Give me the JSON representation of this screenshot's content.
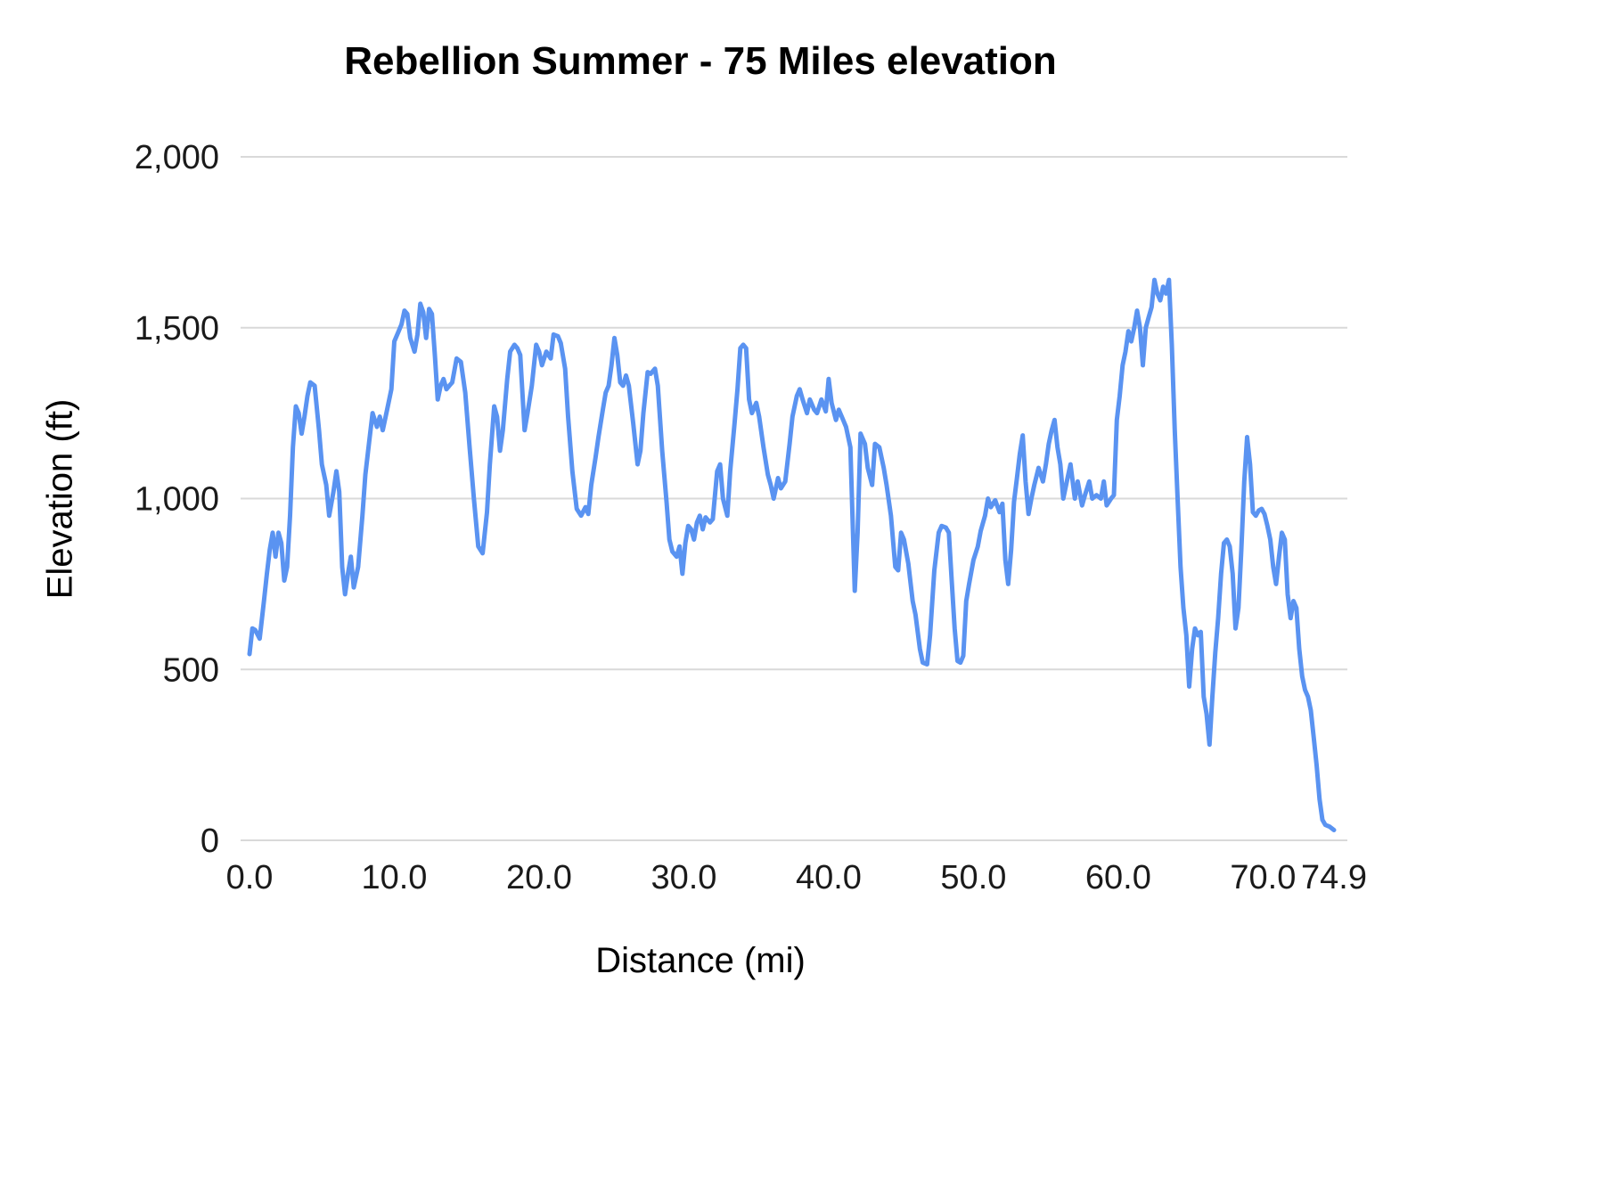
{
  "chart_data": {
    "type": "line",
    "title": "Rebellion Summer - 75 Miles elevation",
    "xlabel": "Distance (mi)",
    "ylabel": "Elevation (ft)",
    "xlim": [
      0,
      74.9
    ],
    "ylim": [
      0,
      2000
    ],
    "grid": "horizontal",
    "legend": "none",
    "line_color": "#5a93f1",
    "grid_color": "#d9d9d9",
    "x_ticks": [
      {
        "value": 0,
        "label": "0.0"
      },
      {
        "value": 10,
        "label": "10.0"
      },
      {
        "value": 20,
        "label": "20.0"
      },
      {
        "value": 30,
        "label": "30.0"
      },
      {
        "value": 40,
        "label": "40.0"
      },
      {
        "value": 50,
        "label": "50.0"
      },
      {
        "value": 60,
        "label": "60.0"
      },
      {
        "value": 70,
        "label": "70.0"
      },
      {
        "value": 74.9,
        "label": "74.9"
      }
    ],
    "y_ticks": [
      {
        "value": 0,
        "label": "0"
      },
      {
        "value": 500,
        "label": "500"
      },
      {
        "value": 1000,
        "label": "1,000"
      },
      {
        "value": 1500,
        "label": "1,500"
      },
      {
        "value": 2000,
        "label": "2,000"
      }
    ],
    "series": [
      {
        "x": [
          0,
          0.2,
          0.4,
          0.7,
          1,
          1.2,
          1.4,
          1.6,
          1.8,
          2,
          2.2,
          2.4,
          2.6,
          2.8,
          3,
          3.2,
          3.4,
          3.6,
          3.8,
          4,
          4.2,
          4.5,
          4.8,
          5,
          5.3,
          5.5,
          5.8,
          6,
          6.2,
          6.4,
          6.6,
          6.8,
          7,
          7.2,
          7.5,
          7.8,
          8,
          8.3,
          8.5,
          8.8,
          9,
          9.2,
          9.5,
          9.8,
          10,
          10.3,
          10.5,
          10.7,
          10.9,
          11.1,
          11.4,
          11.6,
          11.8,
          12,
          12.2,
          12.4,
          12.6,
          12.8,
          13,
          13.2,
          13.4,
          13.6,
          13.8,
          14,
          14.3,
          14.6,
          14.9,
          15.2,
          15.5,
          15.8,
          16.1,
          16.4,
          16.6,
          16.9,
          17.1,
          17.3,
          17.5,
          17.8,
          18,
          18.3,
          18.5,
          18.7,
          19,
          19.2,
          19.5,
          19.8,
          20,
          20.2,
          20.5,
          20.8,
          21,
          21.3,
          21.5,
          21.8,
          22,
          22.3,
          22.6,
          22.9,
          23.2,
          23.4,
          23.6,
          23.9,
          24.1,
          24.4,
          24.6,
          24.8,
          25,
          25.2,
          25.4,
          25.6,
          25.8,
          26,
          26.2,
          26.5,
          26.8,
          27,
          27.2,
          27.5,
          27.7,
          28,
          28.2,
          28.5,
          28.8,
          29,
          29.2,
          29.5,
          29.7,
          29.9,
          30.1,
          30.3,
          30.5,
          30.7,
          30.9,
          31.1,
          31.3,
          31.5,
          31.8,
          32,
          32.3,
          32.5,
          32.7,
          33,
          33.2,
          33.5,
          33.7,
          33.9,
          34.1,
          34.3,
          34.5,
          34.7,
          35,
          35.2,
          35.5,
          35.8,
          36,
          36.2,
          36.5,
          36.7,
          37,
          37.3,
          37.5,
          37.8,
          38,
          38.2,
          38.5,
          38.7,
          39,
          39.2,
          39.5,
          39.8,
          40,
          40.2,
          40.5,
          40.7,
          41,
          41.2,
          41.5,
          41.8,
          42,
          42.2,
          42.5,
          42.7,
          43,
          43.2,
          43.5,
          43.8,
          44,
          44.3,
          44.6,
          44.8,
          45,
          45.2,
          45.5,
          45.8,
          46,
          46.3,
          46.5,
          46.8,
          47,
          47.3,
          47.6,
          47.8,
          48.1,
          48.3,
          48.5,
          48.7,
          48.9,
          49.1,
          49.3,
          49.5,
          49.7,
          50,
          50.3,
          50.5,
          50.8,
          51,
          51.2,
          51.5,
          51.8,
          52,
          52.2,
          52.4,
          52.6,
          52.8,
          53,
          53.2,
          53.4,
          53.6,
          53.8,
          54,
          54.2,
          54.5,
          54.8,
          55,
          55.2,
          55.4,
          55.6,
          55.8,
          56,
          56.2,
          56.5,
          56.7,
          57,
          57.2,
          57.5,
          57.7,
          58,
          58.2,
          58.5,
          58.8,
          59,
          59.2,
          59.5,
          59.7,
          59.9,
          60.1,
          60.3,
          60.5,
          60.7,
          60.9,
          61.1,
          61.3,
          61.5,
          61.7,
          61.9,
          62.1,
          62.3,
          62.5,
          62.7,
          62.9,
          63.1,
          63.3,
          63.5,
          63.7,
          63.9,
          64.1,
          64.3,
          64.5,
          64.7,
          64.9,
          65.1,
          65.3,
          65.5,
          65.7,
          65.9,
          66.1,
          66.3,
          66.5,
          66.7,
          66.9,
          67.1,
          67.3,
          67.5,
          67.7,
          67.9,
          68.1,
          68.3,
          68.5,
          68.7,
          68.9,
          69.1,
          69.3,
          69.5,
          69.7,
          69.9,
          70.1,
          70.3,
          70.5,
          70.7,
          70.9,
          71.1,
          71.3,
          71.5,
          71.7,
          71.9,
          72.1,
          72.3,
          72.5,
          72.7,
          72.9,
          73.1,
          73.3,
          73.5,
          73.7,
          73.9,
          74.1,
          74.3,
          74.6,
          74.9
        ],
        "values": [
          545,
          620,
          615,
          590,
          700,
          780,
          850,
          900,
          830,
          900,
          870,
          760,
          800,
          950,
          1150,
          1270,
          1250,
          1190,
          1240,
          1300,
          1340,
          1330,
          1200,
          1100,
          1040,
          950,
          1020,
          1080,
          1020,
          800,
          720,
          780,
          830,
          740,
          800,
          950,
          1070,
          1180,
          1250,
          1210,
          1240,
          1200,
          1260,
          1320,
          1460,
          1490,
          1510,
          1550,
          1540,
          1470,
          1430,
          1480,
          1570,
          1545,
          1470,
          1555,
          1540,
          1420,
          1290,
          1330,
          1350,
          1320,
          1330,
          1340,
          1410,
          1400,
          1310,
          1150,
          1000,
          860,
          840,
          960,
          1100,
          1270,
          1240,
          1140,
          1200,
          1350,
          1430,
          1450,
          1440,
          1420,
          1200,
          1250,
          1330,
          1450,
          1430,
          1390,
          1430,
          1410,
          1480,
          1475,
          1455,
          1380,
          1240,
          1080,
          970,
          950,
          975,
          955,
          1040,
          1120,
          1180,
          1260,
          1310,
          1330,
          1390,
          1470,
          1420,
          1340,
          1330,
          1360,
          1330,
          1220,
          1100,
          1140,
          1250,
          1370,
          1365,
          1380,
          1330,
          1140,
          990,
          880,
          845,
          830,
          860,
          780,
          870,
          920,
          910,
          880,
          930,
          950,
          910,
          945,
          930,
          940,
          1080,
          1100,
          1000,
          950,
          1080,
          1220,
          1320,
          1440,
          1450,
          1440,
          1290,
          1250,
          1280,
          1240,
          1150,
          1070,
          1040,
          1000,
          1060,
          1030,
          1050,
          1160,
          1240,
          1300,
          1320,
          1290,
          1250,
          1290,
          1260,
          1250,
          1290,
          1255,
          1350,
          1280,
          1230,
          1260,
          1230,
          1210,
          1150,
          730,
          900,
          1190,
          1160,
          1090,
          1040,
          1160,
          1150,
          1090,
          1040,
          950,
          800,
          790,
          900,
          880,
          810,
          700,
          660,
          560,
          520,
          515,
          600,
          790,
          900,
          920,
          915,
          900,
          760,
          620,
          525,
          520,
          540,
          700,
          750,
          820,
          860,
          905,
          950,
          1000,
          975,
          995,
          960,
          985,
          820,
          750,
          850,
          990,
          1060,
          1130,
          1185,
          1050,
          955,
          1000,
          1040,
          1090,
          1050,
          1100,
          1160,
          1200,
          1230,
          1150,
          1100,
          1000,
          1060,
          1100,
          1000,
          1050,
          980,
          1010,
          1050,
          1000,
          1010,
          1000,
          1050,
          980,
          1000,
          1010,
          1230,
          1300,
          1390,
          1430,
          1490,
          1460,
          1500,
          1550,
          1500,
          1390,
          1500,
          1530,
          1560,
          1640,
          1600,
          1580,
          1620,
          1600,
          1640,
          1450,
          1200,
          1000,
          800,
          680,
          600,
          450,
          560,
          620,
          600,
          610,
          420,
          370,
          280,
          420,
          550,
          650,
          780,
          870,
          880,
          860,
          780,
          620,
          680,
          850,
          1050,
          1180,
          1100,
          960,
          950,
          965,
          970,
          955,
          920,
          880,
          800,
          750,
          830,
          900,
          880,
          720,
          650,
          700,
          680,
          560,
          480,
          440,
          420,
          380,
          300,
          220,
          120,
          60,
          45,
          40,
          30
        ]
      }
    ]
  }
}
